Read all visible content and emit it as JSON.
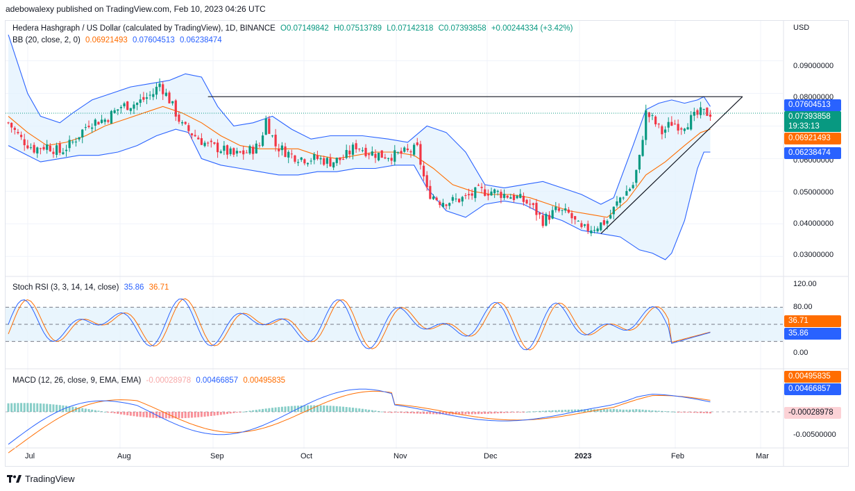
{
  "header": "adebowalexy published on TradingView.com, Feb 10, 2023 04:26 UTC",
  "currency": "USD",
  "legend_main": {
    "title": "Hedera Hashgraph / US Dollar (calculated by TradingView), 1D, BINANCE",
    "o": "O0.07149842",
    "h": "H0.07513789",
    "l": "L0.07142318",
    "c": "C0.07393858",
    "chg": "+0.00244334 (+3.42%)"
  },
  "legend_bb": {
    "title": "BB (20, close, 2, 0)",
    "basis": "0.06921493",
    "upper": "0.07604513",
    "lower": "0.06238474"
  },
  "legend_stoch": {
    "title": "Stoch RSI (3, 3, 14, 14, close)",
    "k": "35.86",
    "d": "36.71"
  },
  "legend_macd": {
    "title": "MACD (12, 26, close, 9, EMA, EMA)",
    "hist": "-0.00028978",
    "macd": "0.00466857",
    "signal": "0.00495835"
  },
  "price_axis": [
    "0.09000000",
    "0.08000000",
    "0.06000000",
    "0.05000000",
    "0.04000000",
    "0.03000000"
  ],
  "price_tags": {
    "upper": "0.07604513",
    "close": "0.07393858",
    "countdown": "19:33:13",
    "basis": "0.06921493",
    "lower": "0.06238474"
  },
  "stoch_axis": [
    "120.00",
    "80.00",
    "0.00"
  ],
  "stoch_tags": {
    "d": "36.71",
    "k": "35.86"
  },
  "macd_axis": [
    "-0.00500000"
  ],
  "macd_tags": {
    "signal": "0.00495835",
    "macd": "0.00466857",
    "hist": "-0.00028978"
  },
  "x_labels": [
    "Jul",
    "Aug",
    "Sep",
    "Oct",
    "Nov",
    "Dec",
    "2023",
    "Feb",
    "Mar"
  ],
  "footer": "TradingView",
  "colors": {
    "up": "#089981",
    "down": "#f23645",
    "band": "#2962ff",
    "basis": "#ff6d00",
    "band_fill": "#e3f2fd"
  },
  "chart_data": {
    "type": "candlestick",
    "title": "Hedera Hashgraph / US Dollar (calculated by TradingView), 1D, BINANCE",
    "ylabel": "USD",
    "ylim": [
      0.026,
      0.098
    ],
    "x": [
      "Jul",
      "Aug",
      "Sep",
      "Oct",
      "Nov",
      "Dec",
      "2023",
      "Feb",
      "Mar"
    ],
    "close_path": [
      [
        0,
        0.071
      ],
      [
        4,
        0.066
      ],
      [
        8,
        0.063
      ],
      [
        12,
        0.064
      ],
      [
        16,
        0.062
      ],
      [
        20,
        0.065
      ],
      [
        25,
        0.071
      ],
      [
        30,
        0.072
      ],
      [
        35,
        0.076
      ],
      [
        40,
        0.077
      ],
      [
        45,
        0.08
      ],
      [
        47,
        0.083
      ],
      [
        50,
        0.078
      ],
      [
        54,
        0.07
      ],
      [
        58,
        0.067
      ],
      [
        62,
        0.064
      ],
      [
        66,
        0.063
      ],
      [
        70,
        0.061
      ],
      [
        74,
        0.062
      ],
      [
        78,
        0.064
      ],
      [
        80,
        0.072
      ],
      [
        83,
        0.064
      ],
      [
        88,
        0.061
      ],
      [
        92,
        0.06
      ],
      [
        96,
        0.06
      ],
      [
        100,
        0.059
      ],
      [
        104,
        0.06
      ],
      [
        108,
        0.064
      ],
      [
        112,
        0.062
      ],
      [
        116,
        0.061
      ],
      [
        120,
        0.061
      ],
      [
        124,
        0.062
      ],
      [
        127,
        0.063
      ],
      [
        130,
        0.05
      ],
      [
        134,
        0.047
      ],
      [
        138,
        0.047
      ],
      [
        142,
        0.048
      ],
      [
        146,
        0.05
      ],
      [
        150,
        0.05
      ],
      [
        154,
        0.049
      ],
      [
        158,
        0.048
      ],
      [
        162,
        0.046
      ],
      [
        166,
        0.041
      ],
      [
        170,
        0.044
      ],
      [
        174,
        0.043
      ],
      [
        178,
        0.038
      ],
      [
        182,
        0.039
      ],
      [
        186,
        0.041
      ],
      [
        190,
        0.048
      ],
      [
        194,
        0.052
      ],
      [
        196,
        0.06
      ],
      [
        198,
        0.074
      ],
      [
        200,
        0.072
      ],
      [
        203,
        0.068
      ],
      [
        206,
        0.071
      ],
      [
        209,
        0.07
      ],
      [
        212,
        0.072
      ],
      [
        215,
        0.074
      ],
      [
        218,
        0.074
      ]
    ],
    "bb_upper_path": [
      [
        0,
        0.098
      ],
      [
        6,
        0.08
      ],
      [
        10,
        0.073
      ],
      [
        16,
        0.071
      ],
      [
        20,
        0.074
      ],
      [
        26,
        0.078
      ],
      [
        32,
        0.08
      ],
      [
        38,
        0.082
      ],
      [
        44,
        0.083
      ],
      [
        50,
        0.084
      ],
      [
        55,
        0.086
      ],
      [
        60,
        0.085
      ],
      [
        65,
        0.076
      ],
      [
        70,
        0.07
      ],
      [
        76,
        0.071
      ],
      [
        82,
        0.073
      ],
      [
        88,
        0.069
      ],
      [
        94,
        0.066
      ],
      [
        100,
        0.067
      ],
      [
        104,
        0.067
      ],
      [
        110,
        0.067
      ],
      [
        118,
        0.066
      ],
      [
        124,
        0.065
      ],
      [
        130,
        0.07
      ],
      [
        136,
        0.068
      ],
      [
        142,
        0.062
      ],
      [
        148,
        0.052
      ],
      [
        154,
        0.051
      ],
      [
        160,
        0.052
      ],
      [
        166,
        0.053
      ],
      [
        172,
        0.051
      ],
      [
        178,
        0.049
      ],
      [
        184,
        0.046
      ],
      [
        188,
        0.048
      ],
      [
        194,
        0.064
      ],
      [
        198,
        0.075
      ],
      [
        202,
        0.077
      ],
      [
        206,
        0.078
      ],
      [
        210,
        0.077
      ],
      [
        214,
        0.078
      ],
      [
        216,
        0.079
      ],
      [
        218,
        0.076
      ]
    ],
    "bb_basis_path": [
      [
        0,
        0.073
      ],
      [
        6,
        0.068
      ],
      [
        12,
        0.064
      ],
      [
        18,
        0.065
      ],
      [
        24,
        0.067
      ],
      [
        30,
        0.07
      ],
      [
        36,
        0.072
      ],
      [
        42,
        0.074
      ],
      [
        48,
        0.076
      ],
      [
        54,
        0.074
      ],
      [
        60,
        0.071
      ],
      [
        66,
        0.067
      ],
      [
        72,
        0.064
      ],
      [
        78,
        0.063
      ],
      [
        84,
        0.063
      ],
      [
        90,
        0.063
      ],
      [
        96,
        0.061
      ],
      [
        102,
        0.06
      ],
      [
        108,
        0.061
      ],
      [
        114,
        0.062
      ],
      [
        120,
        0.062
      ],
      [
        126,
        0.061
      ],
      [
        132,
        0.057
      ],
      [
        138,
        0.052
      ],
      [
        144,
        0.05
      ],
      [
        150,
        0.049
      ],
      [
        156,
        0.049
      ],
      [
        162,
        0.048
      ],
      [
        168,
        0.046
      ],
      [
        174,
        0.044
      ],
      [
        180,
        0.043
      ],
      [
        186,
        0.042
      ],
      [
        192,
        0.047
      ],
      [
        198,
        0.055
      ],
      [
        204,
        0.059
      ],
      [
        210,
        0.064
      ],
      [
        215,
        0.068
      ],
      [
        218,
        0.069
      ]
    ],
    "bb_lower_path": [
      [
        0,
        0.064
      ],
      [
        6,
        0.061
      ],
      [
        10,
        0.059
      ],
      [
        16,
        0.06
      ],
      [
        22,
        0.061
      ],
      [
        28,
        0.061
      ],
      [
        34,
        0.062
      ],
      [
        40,
        0.064
      ],
      [
        46,
        0.067
      ],
      [
        52,
        0.069
      ],
      [
        56,
        0.068
      ],
      [
        60,
        0.06
      ],
      [
        66,
        0.058
      ],
      [
        72,
        0.057
      ],
      [
        78,
        0.056
      ],
      [
        84,
        0.055
      ],
      [
        90,
        0.055
      ],
      [
        96,
        0.056
      ],
      [
        102,
        0.056
      ],
      [
        108,
        0.057
      ],
      [
        114,
        0.057
      ],
      [
        120,
        0.058
      ],
      [
        126,
        0.058
      ],
      [
        130,
        0.051
      ],
      [
        136,
        0.044
      ],
      [
        142,
        0.042
      ],
      [
        148,
        0.046
      ],
      [
        154,
        0.047
      ],
      [
        160,
        0.046
      ],
      [
        166,
        0.043
      ],
      [
        172,
        0.041
      ],
      [
        178,
        0.038
      ],
      [
        184,
        0.037
      ],
      [
        190,
        0.036
      ],
      [
        196,
        0.032
      ],
      [
        200,
        0.031
      ],
      [
        204,
        0.029
      ],
      [
        206,
        0.031
      ],
      [
        210,
        0.041
      ],
      [
        214,
        0.057
      ],
      [
        216,
        0.062
      ],
      [
        218,
        0.062
      ]
    ],
    "resistance_line": [
      [
        62,
        0.079
      ],
      [
        228,
        0.079
      ]
    ],
    "support_line": [
      [
        184,
        0.037
      ],
      [
        228,
        0.079
      ]
    ]
  }
}
